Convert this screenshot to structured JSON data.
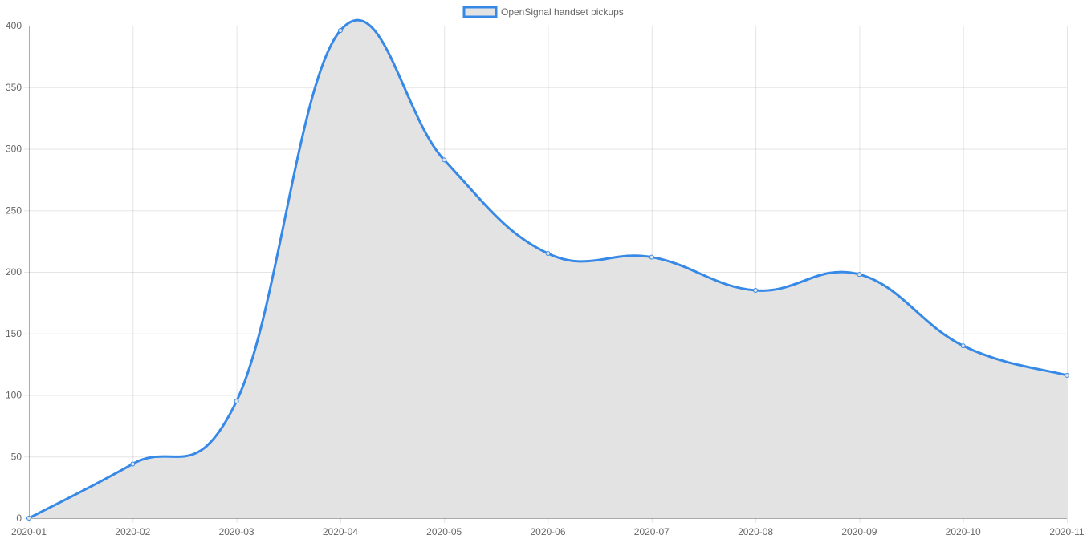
{
  "chart_data": {
    "type": "area",
    "title": "",
    "xlabel": "",
    "ylabel": "",
    "categories": [
      "2020-01",
      "2020-02",
      "2020-03",
      "2020-04",
      "2020-05",
      "2020-06",
      "2020-07",
      "2020-08",
      "2020-09",
      "2020-10",
      "2020-11"
    ],
    "series": [
      {
        "name": "OpenSignal handset pickups",
        "values": [
          0,
          44,
          95,
          396,
          291,
          215,
          212,
          185,
          198,
          140,
          116
        ],
        "line_color": "#3689e6",
        "fill_color": "#e3e3e3"
      }
    ],
    "ylim": [
      0,
      400
    ],
    "yticks": [
      0,
      50,
      100,
      150,
      200,
      250,
      300,
      350,
      400
    ],
    "grid": true,
    "legend_position": "top-center"
  }
}
